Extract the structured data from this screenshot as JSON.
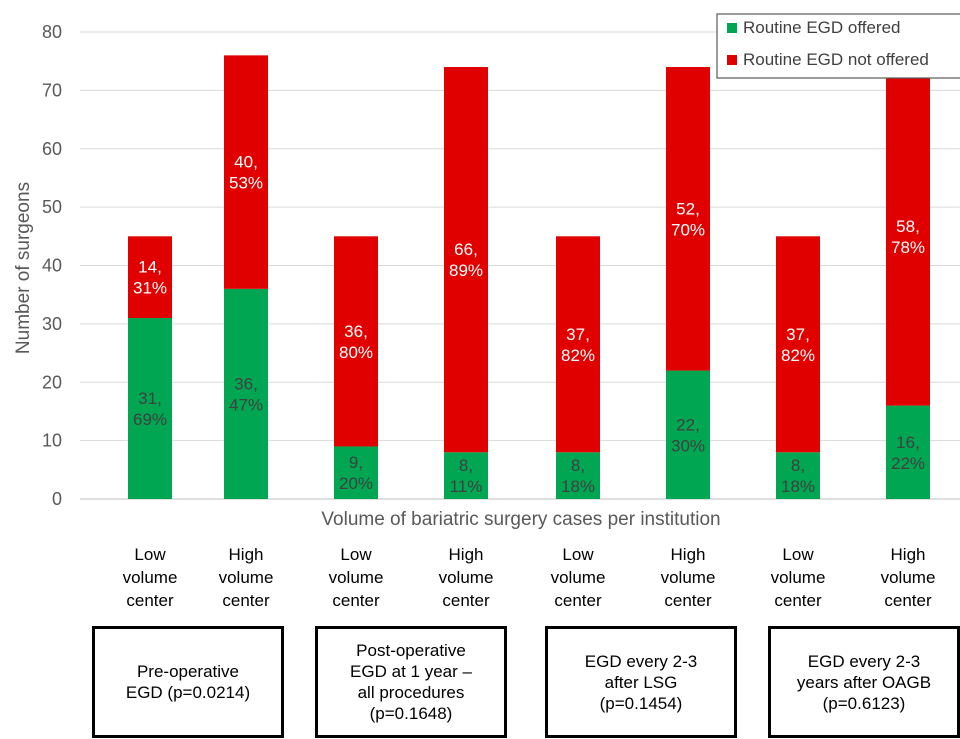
{
  "chart_data": {
    "type": "bar",
    "stacked": true,
    "ylabel": "Number of surgeons",
    "xlabel": "Volume of bariatric surgery cases per institution",
    "ylim": [
      0,
      80
    ],
    "yticks": [
      0,
      10,
      20,
      30,
      40,
      50,
      60,
      70,
      80
    ],
    "grid": true,
    "legend_position": "top-right",
    "categories": [
      "Low\nvolume\ncenter",
      "High\nvolume\ncenter",
      "Low\nvolume\ncenter",
      "High\nvolume\ncenter",
      "Low\nvolume\ncenter",
      "High\nvolume\ncenter",
      "Low\nvolume\ncenter",
      "High\nvolume\ncenter"
    ],
    "series": [
      {
        "name": "Routine EGD offered",
        "color": "#00a651",
        "values": [
          31,
          36,
          9,
          8,
          8,
          22,
          8,
          16
        ],
        "labels": [
          "31,\n69%",
          "36,\n47%",
          "9,\n20%",
          "8,\n11%",
          "8,\n18%",
          "22,\n30%",
          "8,\n18%",
          "16,\n22%"
        ],
        "label_color": "#404040"
      },
      {
        "name": "Routine EGD not offered",
        "color": "#e00000",
        "values": [
          14,
          40,
          36,
          66,
          37,
          52,
          37,
          58
        ],
        "labels": [
          "14,\n31%",
          "40,\n53%",
          "36,\n80%",
          "66,\n89%",
          "37,\n82%",
          "52,\n70%",
          "37,\n82%",
          "58,\n78%"
        ],
        "label_color": "#ffffff"
      }
    ],
    "groups": [
      "Pre-operative\nEGD (p=0.0214)",
      "Post-operative\nEGD at 1 year –\nall procedures\n(p=0.1648)",
      "EGD every 2-3\nafter LSG\n(p=0.1454)",
      "EGD every 2-3\nyears after OAGB\n(p=0.6123)"
    ]
  }
}
